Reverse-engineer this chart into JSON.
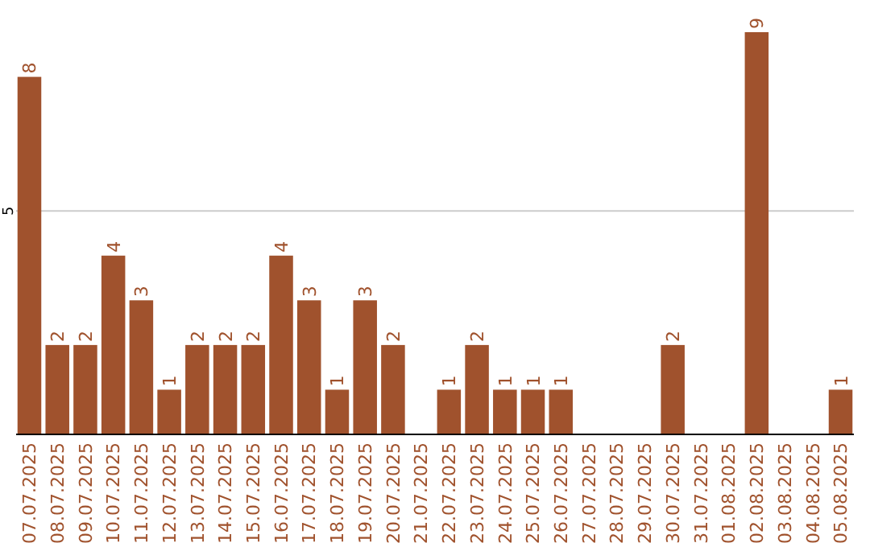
{
  "chart_data": {
    "type": "bar",
    "categories": [
      "07.07.2025",
      "08.07.2025",
      "09.07.2025",
      "10.07.2025",
      "11.07.2025",
      "12.07.2025",
      "13.07.2025",
      "14.07.2025",
      "15.07.2025",
      "16.07.2025",
      "17.07.2025",
      "18.07.2025",
      "19.07.2025",
      "20.07.2025",
      "21.07.2025",
      "22.07.2025",
      "23.07.2025",
      "24.07.2025",
      "25.07.2025",
      "26.07.2025",
      "27.07.2025",
      "28.07.2025",
      "29.07.2025",
      "30.07.2025",
      "31.07.2025",
      "01.08.2025",
      "02.08.2025",
      "03.08.2025",
      "04.08.2025",
      "05.08.2025"
    ],
    "values": [
      8,
      2,
      2,
      4,
      3,
      1,
      2,
      2,
      2,
      4,
      3,
      1,
      3,
      2,
      null,
      1,
      2,
      1,
      1,
      1,
      null,
      null,
      null,
      2,
      null,
      null,
      9,
      null,
      null,
      1
    ],
    "color": "#a0522d",
    "ylim": [
      0,
      9
    ],
    "yticks": [
      5
    ],
    "grid": "y",
    "data_labels": true
  }
}
